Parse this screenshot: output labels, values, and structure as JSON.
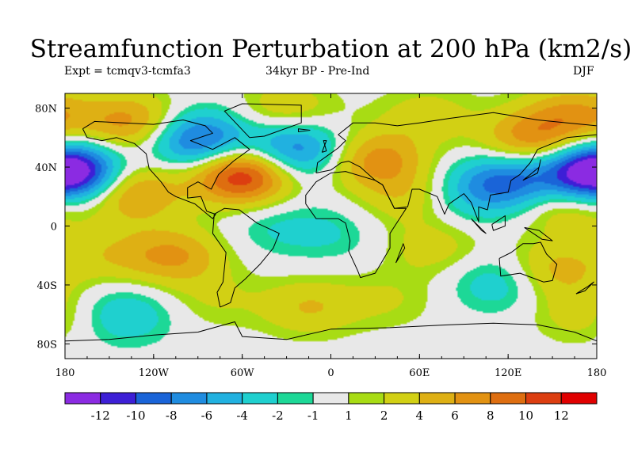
{
  "title": "Streamfunction Perturbation at 200 hPa (km2/s)",
  "left_subtitle": "Expt = tcmqv3-tcmfa3",
  "center_subtitle": "34kyr BP - Pre-Ind",
  "right_subtitle": "DJF",
  "map": {
    "projection": "cylindrical-equidistant",
    "lon_range": [
      -180,
      180
    ],
    "lat_range": [
      -90,
      90
    ],
    "x_ticks": [
      {
        "lon": -180,
        "label": "180"
      },
      {
        "lon": -120,
        "label": "120W"
      },
      {
        "lon": -60,
        "label": "60W"
      },
      {
        "lon": 0,
        "label": "0"
      },
      {
        "lon": 60,
        "label": "60E"
      },
      {
        "lon": 120,
        "label": "120E"
      },
      {
        "lon": 180,
        "label": "180"
      }
    ],
    "y_ticks": [
      {
        "lat": 80,
        "label": "80N"
      },
      {
        "lat": 40,
        "label": "40N"
      },
      {
        "lat": 0,
        "label": "0"
      },
      {
        "lat": -40,
        "label": "40S"
      },
      {
        "lat": -80,
        "label": "80S"
      }
    ],
    "anomaly_centers": [
      {
        "lon": -60,
        "lat": 35,
        "value": 13
      },
      {
        "lon": -135,
        "lat": 23,
        "value": 7
      },
      {
        "lon": -135,
        "lat": 70,
        "value": 7
      },
      {
        "lon": -175,
        "lat": 36,
        "value": -10
      },
      {
        "lon": -90,
        "lat": 58,
        "value": -10
      },
      {
        "lon": -25,
        "lat": 52,
        "value": -9
      },
      {
        "lon": 120,
        "lat": 30,
        "value": -9
      },
      {
        "lon": 175,
        "lat": 36,
        "value": -9
      },
      {
        "lon": 30,
        "lat": 45,
        "value": 7
      },
      {
        "lon": 135,
        "lat": 58,
        "value": 7
      },
      {
        "lon": 165,
        "lat": 75,
        "value": 6
      },
      {
        "lon": -30,
        "lat": 78,
        "value": 4
      },
      {
        "lon": 65,
        "lat": 75,
        "value": 3
      },
      {
        "lon": 55,
        "lat": 20,
        "value": 4
      },
      {
        "lon": 85,
        "lat": 20,
        "value": -3
      },
      {
        "lon": 160,
        "lat": 15,
        "value": 5
      },
      {
        "lon": -105,
        "lat": -20,
        "value": 6
      },
      {
        "lon": -150,
        "lat": -20,
        "value": 3
      },
      {
        "lon": -140,
        "lat": -60,
        "value": -4
      },
      {
        "lon": -80,
        "lat": -50,
        "value": 2
      },
      {
        "lon": -15,
        "lat": -55,
        "value": 4
      },
      {
        "lon": 70,
        "lat": -15,
        "value": 3
      },
      {
        "lon": 115,
        "lat": -38,
        "value": -4
      },
      {
        "lon": 150,
        "lat": -30,
        "value": 5
      },
      {
        "lon": 170,
        "lat": -60,
        "value": 3
      },
      {
        "lon": 40,
        "lat": -50,
        "value": 2
      },
      {
        "lon": -40,
        "lat": 0,
        "value": -2
      },
      {
        "lon": 0,
        "lat": -5,
        "value": -2
      }
    ],
    "land_shapes": [
      [
        [
          -168,
          66
        ],
        [
          -160,
          71
        ],
        [
          -140,
          70
        ],
        [
          -120,
          69
        ],
        [
          -100,
          72
        ],
        [
          -85,
          68
        ],
        [
          -80,
          63
        ],
        [
          -95,
          58
        ],
        [
          -80,
          52
        ],
        [
          -65,
          60
        ],
        [
          -55,
          52
        ],
        [
          -66,
          44
        ],
        [
          -76,
          35
        ],
        [
          -81,
          25
        ],
        [
          -90,
          30
        ],
        [
          -97,
          26
        ],
        [
          -97,
          19
        ],
        [
          -88,
          20
        ],
        [
          -84,
          10
        ],
        [
          -78,
          8
        ],
        [
          -80,
          5
        ],
        [
          -92,
          15
        ],
        [
          -105,
          20
        ],
        [
          -110,
          23
        ],
        [
          -115,
          30
        ],
        [
          -123,
          39
        ],
        [
          -125,
          49
        ],
        [
          -133,
          56
        ],
        [
          -145,
          60
        ],
        [
          -155,
          58
        ],
        [
          -165,
          60
        ],
        [
          -168,
          66
        ]
      ],
      [
        [
          -75,
          -55
        ],
        [
          -77,
          -45
        ],
        [
          -73,
          -38
        ],
        [
          -71,
          -18
        ],
        [
          -80,
          -5
        ],
        [
          -79,
          8
        ],
        [
          -72,
          12
        ],
        [
          -62,
          11
        ],
        [
          -50,
          2
        ],
        [
          -35,
          -5
        ],
        [
          -39,
          -15
        ],
        [
          -48,
          -26
        ],
        [
          -58,
          -36
        ],
        [
          -65,
          -42
        ],
        [
          -68,
          -52
        ],
        [
          -75,
          -55
        ]
      ],
      [
        [
          -55,
          60
        ],
        [
          -45,
          61
        ],
        [
          -20,
          70
        ],
        [
          -20,
          82
        ],
        [
          -60,
          83
        ],
        [
          -72,
          78
        ],
        [
          -55,
          60
        ]
      ],
      [
        [
          -10,
          36
        ],
        [
          -9,
          43
        ],
        [
          -2,
          48
        ],
        [
          5,
          53
        ],
        [
          10,
          58
        ],
        [
          5,
          62
        ],
        [
          15,
          70
        ],
        [
          30,
          70
        ],
        [
          45,
          68
        ],
        [
          60,
          70
        ],
        [
          80,
          73
        ],
        [
          110,
          77
        ],
        [
          140,
          72
        ],
        [
          160,
          70
        ],
        [
          180,
          68
        ],
        [
          180,
          62
        ],
        [
          160,
          60
        ],
        [
          140,
          52
        ],
        [
          135,
          43
        ],
        [
          128,
          35
        ],
        [
          122,
          31
        ],
        [
          120,
          23
        ],
        [
          108,
          21
        ],
        [
          106,
          11
        ],
        [
          100,
          13
        ],
        [
          100,
          3
        ],
        [
          95,
          16
        ],
        [
          90,
          22
        ],
        [
          80,
          15
        ],
        [
          77,
          8
        ],
        [
          72,
          20
        ],
        [
          60,
          25
        ],
        [
          55,
          25
        ],
        [
          52,
          13
        ],
        [
          43,
          12
        ],
        [
          35,
          28
        ],
        [
          30,
          31
        ],
        [
          20,
          40
        ],
        [
          12,
          44
        ],
        [
          7,
          43
        ],
        [
          0,
          38
        ],
        [
          -10,
          36
        ]
      ],
      [
        [
          -17,
          15
        ],
        [
          -10,
          5
        ],
        [
          5,
          5
        ],
        [
          10,
          2
        ],
        [
          13,
          -10
        ],
        [
          12,
          -17
        ],
        [
          18,
          -30
        ],
        [
          20,
          -35
        ],
        [
          30,
          -32
        ],
        [
          40,
          -15
        ],
        [
          40,
          -5
        ],
        [
          51,
          12
        ],
        [
          43,
          12
        ],
        [
          35,
          28
        ],
        [
          30,
          31
        ],
        [
          10,
          37
        ],
        [
          0,
          36
        ],
        [
          -10,
          30
        ],
        [
          -17,
          21
        ],
        [
          -17,
          15
        ]
      ],
      [
        [
          114,
          -22
        ],
        [
          122,
          -18
        ],
        [
          130,
          -12
        ],
        [
          137,
          -12
        ],
        [
          142,
          -11
        ],
        [
          146,
          -19
        ],
        [
          153,
          -26
        ],
        [
          150,
          -37
        ],
        [
          144,
          -38
        ],
        [
          136,
          -35
        ],
        [
          128,
          -32
        ],
        [
          115,
          -34
        ],
        [
          114,
          -22
        ]
      ],
      [
        [
          -180,
          -78
        ],
        [
          -150,
          -77
        ],
        [
          -120,
          -74
        ],
        [
          -90,
          -72
        ],
        [
          -65,
          -65
        ],
        [
          -60,
          -75
        ],
        [
          -30,
          -77
        ],
        [
          0,
          -70
        ],
        [
          40,
          -69
        ],
        [
          80,
          -67
        ],
        [
          110,
          -66
        ],
        [
          140,
          -67
        ],
        [
          165,
          -72
        ],
        [
          180,
          -78
        ]
      ],
      [
        [
          -6,
          50
        ],
        [
          -3,
          58
        ],
        [
          -5,
          58
        ],
        [
          -3,
          51
        ],
        [
          -6,
          50
        ]
      ],
      [
        [
          130,
          31
        ],
        [
          135,
          35
        ],
        [
          141,
          40
        ],
        [
          142,
          45
        ],
        [
          140,
          36
        ],
        [
          130,
          31
        ]
      ],
      [
        [
          95,
          5
        ],
        [
          105,
          -5
        ],
        [
          102,
          -3
        ],
        [
          95,
          5
        ]
      ],
      [
        [
          109,
          1
        ],
        [
          118,
          7
        ],
        [
          118,
          0
        ],
        [
          110,
          -3
        ],
        [
          109,
          1
        ]
      ],
      [
        [
          131,
          -1
        ],
        [
          141,
          -3
        ],
        [
          150,
          -10
        ],
        [
          143,
          -9
        ],
        [
          131,
          -1
        ]
      ],
      [
        [
          44,
          -25
        ],
        [
          50,
          -15
        ],
        [
          49,
          -12
        ],
        [
          44,
          -25
        ]
      ],
      [
        [
          -14,
          65
        ],
        [
          -22,
          64
        ],
        [
          -22,
          66
        ],
        [
          -14,
          65
        ]
      ],
      [
        [
          166,
          -46
        ],
        [
          174,
          -41
        ],
        [
          178,
          -38
        ],
        [
          172,
          -44
        ],
        [
          166,
          -46
        ]
      ]
    ]
  },
  "colorbar": {
    "colors": [
      "#8b2be2",
      "#3d1fd6",
      "#1a64d8",
      "#1f8ce0",
      "#21b1e0",
      "#1fd0cf",
      "#1dd897",
      "#e8e8e8",
      "#a8dc14",
      "#d2d014",
      "#deb014",
      "#e29212",
      "#de6e10",
      "#dc3e10",
      "#e00000"
    ],
    "labels": [
      "-12",
      "-10",
      "-8",
      "-6",
      "-4",
      "-2",
      "-1",
      "1",
      "2",
      "4",
      "6",
      "8",
      "10",
      "12"
    ]
  }
}
